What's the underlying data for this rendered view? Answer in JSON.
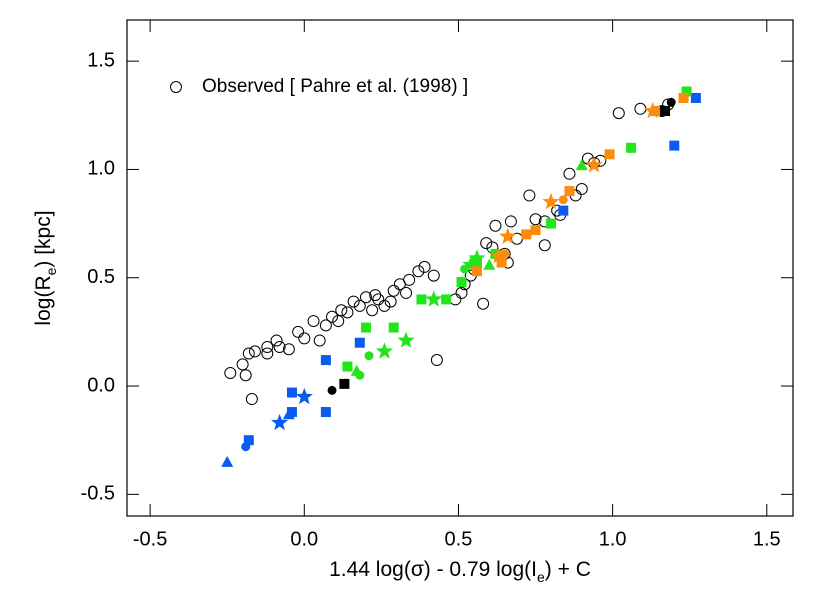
{
  "chart_data": {
    "type": "scatter",
    "xlabel": [
      "1.44 log(σ) - 0.79 log(I",
      "e",
      ") + C"
    ],
    "ylabel": [
      "log(R",
      "e",
      ")  [kpc]"
    ],
    "xlim": [
      -0.575,
      1.585
    ],
    "ylim": [
      -0.6,
      1.69
    ],
    "xticks": [
      {
        "value": -0.5,
        "label": "-0.5"
      },
      {
        "value": 0,
        "label": "0.0"
      },
      {
        "value": 0.5,
        "label": "0.5"
      },
      {
        "value": 1,
        "label": "1.0"
      },
      {
        "value": 1.5,
        "label": "1.5"
      }
    ],
    "yticks": [
      {
        "value": -0.5,
        "label": "-0.5"
      },
      {
        "value": 0,
        "label": "0.0"
      },
      {
        "value": 0.5,
        "label": "0.5"
      },
      {
        "value": 1,
        "label": "1.0"
      },
      {
        "value": 1.5,
        "label": "1.5"
      }
    ],
    "legend": "top-left",
    "series": [
      {
        "name": "Observed [ Pahre et al. (1998) ]",
        "color": "#000000",
        "marker": "circle",
        "filled": false,
        "x": [
          -0.24,
          -0.19,
          -0.17,
          -0.2,
          -0.18,
          -0.16,
          -0.12,
          -0.12,
          -0.09,
          -0.08,
          -0.05,
          -0.02,
          0.0,
          0.03,
          0.05,
          0.07,
          0.09,
          0.11,
          0.12,
          0.14,
          0.16,
          0.18,
          0.2,
          0.22,
          0.23,
          0.24,
          0.26,
          0.28,
          0.29,
          0.31,
          0.33,
          0.34,
          0.37,
          0.39,
          0.42,
          0.43,
          0.49,
          0.51,
          0.52,
          0.54,
          0.55,
          0.58,
          0.59,
          0.61,
          0.62,
          0.65,
          0.66,
          0.67,
          0.69,
          0.73,
          0.75,
          0.78,
          0.78,
          0.82,
          0.83,
          0.86,
          0.88,
          0.9,
          0.92,
          0.94,
          0.96,
          1.02,
          1.09,
          1.16,
          1.18
        ],
        "y": [
          0.06,
          0.05,
          -0.06,
          0.1,
          0.15,
          0.16,
          0.15,
          0.18,
          0.21,
          0.18,
          0.17,
          0.25,
          0.22,
          0.3,
          0.21,
          0.28,
          0.32,
          0.3,
          0.35,
          0.34,
          0.39,
          0.37,
          0.41,
          0.35,
          0.42,
          0.4,
          0.37,
          0.39,
          0.44,
          0.47,
          0.43,
          0.49,
          0.53,
          0.55,
          0.51,
          0.12,
          0.4,
          0.43,
          0.47,
          0.51,
          0.54,
          0.38,
          0.66,
          0.64,
          0.74,
          0.61,
          0.57,
          0.76,
          0.68,
          0.88,
          0.77,
          0.76,
          0.65,
          0.81,
          0.79,
          0.98,
          0.88,
          0.91,
          1.05,
          1.03,
          1.04,
          1.26,
          1.28,
          1.27,
          1.3
        ]
      },
      {
        "color": "#0a5cf0",
        "marker": "square",
        "filled": true,
        "x": [
          0.07,
          0.07,
          0.18,
          -0.04,
          -0.04,
          -0.18,
          0.84,
          1.2,
          1.27
        ],
        "y": [
          0.12,
          -0.12,
          0.2,
          -0.03,
          -0.12,
          -0.25,
          0.81,
          1.11,
          1.33
        ]
      },
      {
        "color": "#0a5cf0",
        "marker": "star",
        "filled": true,
        "x": [
          0.0,
          -0.08
        ],
        "y": [
          -0.05,
          -0.17
        ]
      },
      {
        "color": "#0a5cf0",
        "marker": "circle",
        "filled": true,
        "x": [
          -0.19
        ],
        "y": [
          -0.28
        ]
      },
      {
        "color": "#0a5cf0",
        "marker": "triangle",
        "filled": true,
        "x": [
          -0.25,
          -0.05
        ],
        "y": [
          -0.35,
          -0.13
        ]
      },
      {
        "color": "#22e51c",
        "marker": "square",
        "filled": true,
        "x": [
          0.14,
          0.2,
          0.29,
          0.38,
          0.46,
          0.51,
          0.56,
          0.62,
          0.8,
          1.06,
          1.24,
          1.23
        ],
        "y": [
          0.09,
          0.27,
          0.27,
          0.4,
          0.4,
          0.48,
          0.57,
          0.61,
          0.75,
          1.1,
          1.36,
          1.33
        ]
      },
      {
        "color": "#22e51c",
        "marker": "star",
        "filled": true,
        "x": [
          0.26,
          0.33,
          0.42,
          0.54,
          0.56
        ],
        "y": [
          0.16,
          0.21,
          0.4,
          0.56,
          0.59
        ]
      },
      {
        "color": "#22e51c",
        "marker": "circle",
        "filled": true,
        "x": [
          0.18,
          0.21,
          0.52
        ],
        "y": [
          0.05,
          0.14,
          0.54
        ]
      },
      {
        "color": "#22e51c",
        "marker": "triangle",
        "filled": true,
        "x": [
          0.17,
          0.6,
          0.9
        ],
        "y": [
          0.07,
          0.56,
          1.02
        ]
      },
      {
        "color": "#fb8c0c",
        "marker": "square",
        "filled": true,
        "x": [
          0.56,
          0.64,
          0.72,
          0.75,
          0.86,
          0.99,
          1.14,
          1.23
        ],
        "y": [
          0.53,
          0.57,
          0.7,
          0.72,
          0.9,
          1.07,
          1.27,
          1.33
        ]
      },
      {
        "color": "#fb8c0c",
        "marker": "star",
        "filled": true,
        "x": [
          0.63,
          0.66,
          0.8,
          0.94,
          1.13
        ],
        "y": [
          0.6,
          0.69,
          0.85,
          1.02,
          1.27
        ]
      },
      {
        "color": "#fb8c0c",
        "marker": "circle",
        "filled": true,
        "x": [
          0.65,
          0.84
        ],
        "y": [
          0.61,
          0.86
        ]
      },
      {
        "color": "#000000",
        "marker": "circle",
        "filled": true,
        "x": [
          0.09,
          1.19
        ],
        "y": [
          -0.02,
          1.31
        ]
      },
      {
        "color": "#000000",
        "marker": "square",
        "filled": true,
        "x": [
          0.13,
          1.17
        ],
        "y": [
          0.01,
          1.27
        ]
      }
    ]
  }
}
